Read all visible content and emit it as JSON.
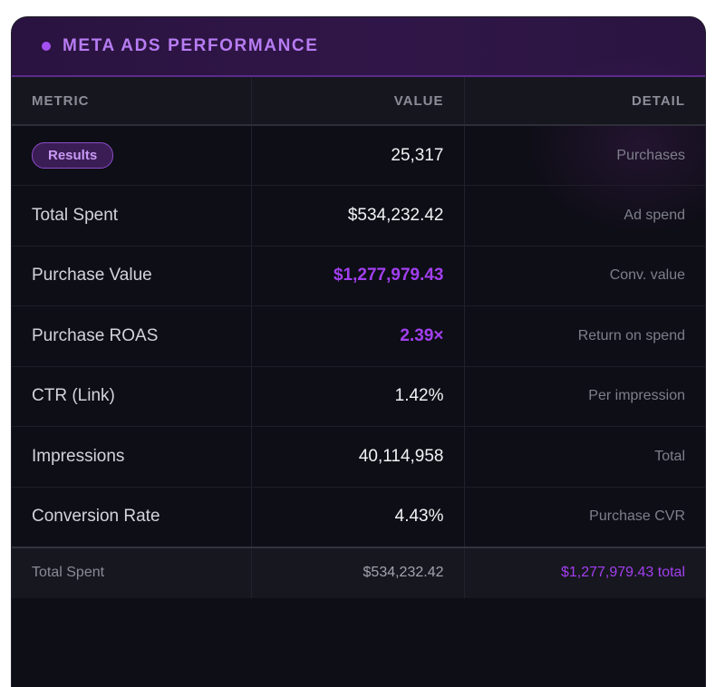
{
  "panel": {
    "title": "META ADS PERFORMANCE"
  },
  "columns": {
    "metric": "METRIC",
    "value": "VALUE",
    "detail": "DETAIL"
  },
  "rows": [
    {
      "metric": "Results",
      "value": "25,317",
      "detail": "Purchases"
    },
    {
      "metric": "Total Spent",
      "value": "$534,232.42",
      "detail": "Ad spend"
    },
    {
      "metric": "Purchase Value",
      "value": "$1,277,979.43",
      "detail": "Conv. value"
    },
    {
      "metric": "Purchase ROAS",
      "value": "2.39×",
      "detail": "Return on spend"
    },
    {
      "metric": "CTR (Link)",
      "value": "1.42%",
      "detail": "Per impression"
    },
    {
      "metric": "Impressions",
      "value": "40,114,958",
      "detail": "Total"
    },
    {
      "metric": "Conversion Rate",
      "value": "4.43%",
      "detail": "Purchase CVR"
    }
  ],
  "footer": {
    "metric": "Total Spent",
    "value": "$534,232.42",
    "detail": "$1,277,979.43 total"
  },
  "colors": {
    "accent": "#a23ff0",
    "badge_text": "#c99af5",
    "background": "#0e0e16"
  }
}
